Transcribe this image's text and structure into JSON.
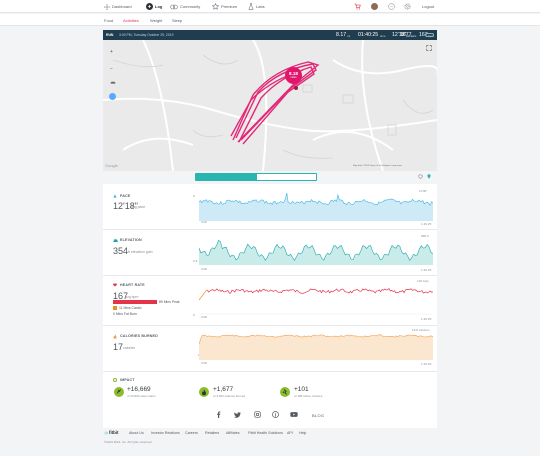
{
  "nav": {
    "items": [
      {
        "label": "Dashboard"
      },
      {
        "label": "Log"
      },
      {
        "label": "Community"
      },
      {
        "label": "Premium"
      },
      {
        "label": "Labs"
      }
    ],
    "logout": "Logout"
  },
  "subnav": {
    "items": [
      "Food",
      "Activities",
      "Weight",
      "Sleep"
    ],
    "active": "Activities"
  },
  "run_bar": {
    "type": "RUN",
    "datetime": "3:00 PM, Tuesday October 29, 2019",
    "distance": "8.17",
    "distance_unit": "mi",
    "duration": "01:40:25",
    "duration_unit": "time",
    "pace": "12'18\"",
    "pace_unit": "pace",
    "avg_hr": "167",
    "avg_hr_unit": "bpm",
    "calories": "1677",
    "calories_unit": "cals"
  },
  "map": {
    "marker_value": "8.18",
    "marker_unit": "miles",
    "google": "Google",
    "attribution": "Map data ©2019   Terms of Use   Report a map error",
    "zoom_in": "+",
    "zoom_out": "−"
  },
  "tabs": {
    "details": "Exercise Details",
    "splits": "Mile Split"
  },
  "sections": {
    "pace": {
      "title": "PACE",
      "value": "12'18\"",
      "unit": "avg pace",
      "max_label": "11'38\"",
      "min_label": "0'",
      "x_start": "0:00",
      "x_end": "1:40:25",
      "color": "#3fb5e3"
    },
    "elevation": {
      "title": "ELEVATION",
      "value": "354",
      "unit": "ft elevation gain",
      "max_label": "886 ft",
      "min_label": "0 ft",
      "x_start": "0:00",
      "x_end": "1:40:25",
      "color": "#1fa7a7"
    },
    "heart": {
      "title": "HEART RATE",
      "value": "167",
      "unit": "avg bpm",
      "max_label": "192 bpm",
      "min_label": "0",
      "x_start": "0:00",
      "x_end": "1:40:25",
      "color": "#e5344a",
      "zones": [
        {
          "label": "89 Mins Peak",
          "color": "#e5344a"
        },
        {
          "label": "11 Mins Cardio",
          "color": "#f08a24"
        },
        {
          "label": "0 Mins Fat Burn",
          "color": "#f6b64a"
        }
      ]
    },
    "calories": {
      "title": "CALORIES BURNED",
      "value": "17",
      "unit": "calories",
      "max_label": "16.8 calories",
      "min_label": "0",
      "x_start": "0:00",
      "x_end": "1:40:25",
      "color": "#f0a04b"
    }
  },
  "impact": {
    "title": "IMPACT",
    "items": [
      {
        "value": "+16,669",
        "label": "of 23,893 steps taken",
        "color": "#8bbd2c"
      },
      {
        "value": "+1,677",
        "label": "of 3,923 calories burned",
        "color": "#8bbd2c"
      },
      {
        "value": "+101",
        "label": "of 188 active minutes",
        "color": "#8bbd2c"
      }
    ]
  },
  "social": {
    "blog": "BLOG"
  },
  "footer": {
    "brand": "fitbit",
    "links": [
      "About Us",
      "Investor Relations",
      "Careers",
      "Retailers",
      "Affiliates",
      "Fitbit Health Solutions",
      "API",
      "Help"
    ],
    "copyright": "©2019 Fitbit, Inc. All rights reserved."
  }
}
